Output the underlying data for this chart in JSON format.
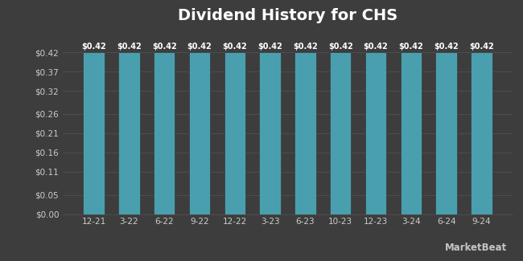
{
  "title": "Dividend History for CHS",
  "categories": [
    "12-21",
    "3-22",
    "6-22",
    "9-22",
    "12-22",
    "3-23",
    "6-23",
    "10-23",
    "12-23",
    "3-24",
    "6-24",
    "9-24"
  ],
  "values": [
    0.42,
    0.42,
    0.42,
    0.42,
    0.42,
    0.42,
    0.42,
    0.42,
    0.42,
    0.42,
    0.42,
    0.42
  ],
  "bar_color": "#4a9faf",
  "bar_edge_color": "#3a3a3a",
  "background_color": "#3d3d3d",
  "plot_bg_color": "#3d3d3d",
  "title_color": "#ffffff",
  "tick_label_color": "#cccccc",
  "bar_label_color": "#ffffff",
  "grid_color": "#555555",
  "ylim": [
    0,
    0.475
  ],
  "yticks": [
    0.0,
    0.05,
    0.11,
    0.16,
    0.21,
    0.26,
    0.32,
    0.37,
    0.42
  ],
  "ytick_labels": [
    "$0.00",
    "$0.05",
    "$0.11",
    "$0.16",
    "$0.21",
    "$0.26",
    "$0.32",
    "$0.37",
    "$0.42"
  ],
  "bar_label_fmt": "$0.42",
  "title_fontsize": 14,
  "tick_fontsize": 7.5,
  "bar_label_fontsize": 7.0,
  "watermark": "MarketBeat",
  "bar_width": 0.6
}
